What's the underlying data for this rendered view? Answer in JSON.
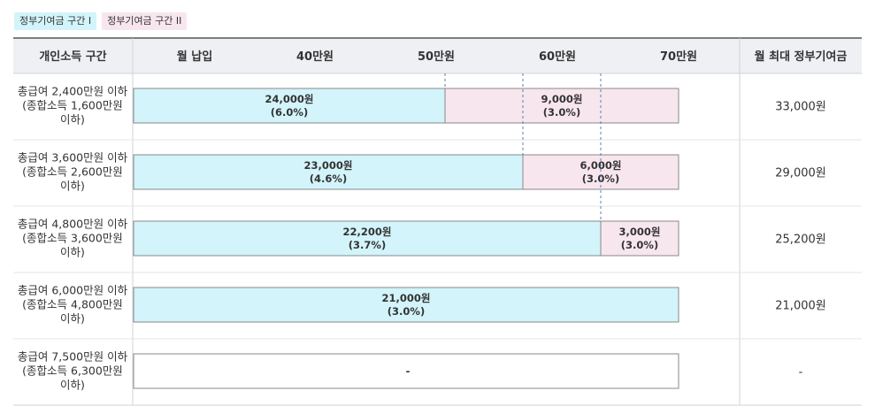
{
  "legend": {
    "tier1": "정부기여금 구간 I",
    "tier2": "정부기여금 구간 II",
    "tier1_color": "#d2f4fa",
    "tier2_color": "#f8e6ee"
  },
  "headers": {
    "income_bracket": "개인소득 구간",
    "monthly_payment": "월 납입",
    "max_contribution": "월 최대 정부기여금"
  },
  "chart_data": {
    "type": "bar",
    "orientation": "horizontal",
    "stacked": true,
    "x_ticks": [
      "40만원",
      "50만원",
      "60만원",
      "70만원"
    ],
    "x_tick_values": [
      40,
      50,
      60,
      70
    ],
    "x_unit": "만원",
    "categories": [
      [
        "총급여 2,400만원 이하",
        "(종합소득 1,600만원",
        "이하)"
      ],
      [
        "총급여 3,600만원 이하",
        "(종합소득 2,600만원",
        "이하)"
      ],
      [
        "총급여 4,800만원 이하",
        "(종합소득 3,600만원",
        "이하)"
      ],
      [
        "총급여 6,000만원 이하",
        "(종합소득 4,800만원",
        "이하)"
      ],
      [
        "총급여 7,500만원 이하",
        "(종합소득 6,300만원",
        "이하)"
      ]
    ],
    "tier1_limits": [
      40,
      50,
      60,
      70,
      0
    ],
    "segments": [
      [
        {
          "tier": 1,
          "amount": "24,000원",
          "rate": "(6.0%)"
        },
        {
          "tier": 2,
          "amount": "9,000원",
          "rate": "(3.0%)"
        }
      ],
      [
        {
          "tier": 1,
          "amount": "23,000원",
          "rate": "(4.6%)"
        },
        {
          "tier": 2,
          "amount": "6,000원",
          "rate": "(3.0%)"
        }
      ],
      [
        {
          "tier": 1,
          "amount": "22,200원",
          "rate": "(3.7%)"
        },
        {
          "tier": 2,
          "amount": "3,000원",
          "rate": "(3.0%)"
        }
      ],
      [
        {
          "tier": 1,
          "amount": "21,000원",
          "rate": "(3.0%)"
        }
      ],
      []
    ],
    "empty_label": "-",
    "max_contribution": [
      "33,000원",
      "29,000원",
      "25,200원",
      "21,000원",
      "-"
    ]
  }
}
